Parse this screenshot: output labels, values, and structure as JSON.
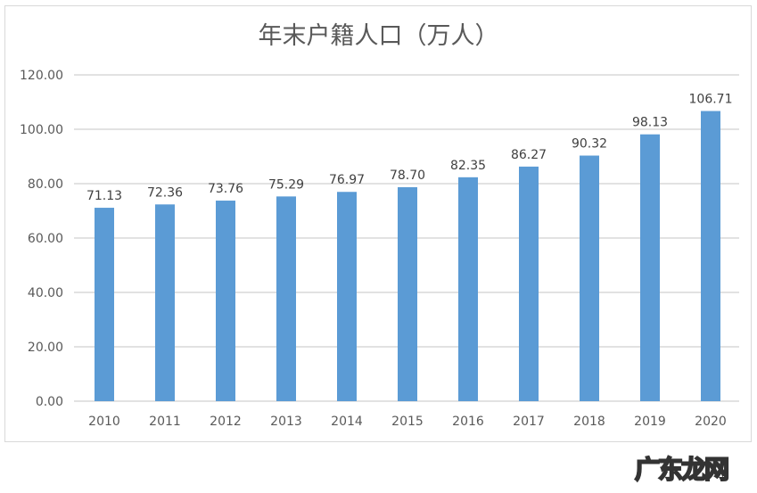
{
  "chart_data": {
    "type": "bar",
    "title": "年末户籍人口（万人）",
    "categories": [
      "2010",
      "2011",
      "2012",
      "2013",
      "2014",
      "2015",
      "2016",
      "2017",
      "2018",
      "2019",
      "2020"
    ],
    "values": [
      71.13,
      72.36,
      73.76,
      75.29,
      76.97,
      78.7,
      82.35,
      86.27,
      90.32,
      98.13,
      106.71
    ],
    "data_labels": [
      "71.13",
      "72.36",
      "73.76",
      "75.29",
      "76.97",
      "78.70",
      "82.35",
      "86.27",
      "90.32",
      "98.13",
      "106.71"
    ],
    "ylim": [
      0,
      120
    ],
    "yticks": [
      "0.00",
      "20.00",
      "40.00",
      "60.00",
      "80.00",
      "100.00",
      "120.00"
    ],
    "grid": true,
    "legend": "none",
    "bar_color": "#5b9bd5"
  },
  "watermark": "广东龙网"
}
